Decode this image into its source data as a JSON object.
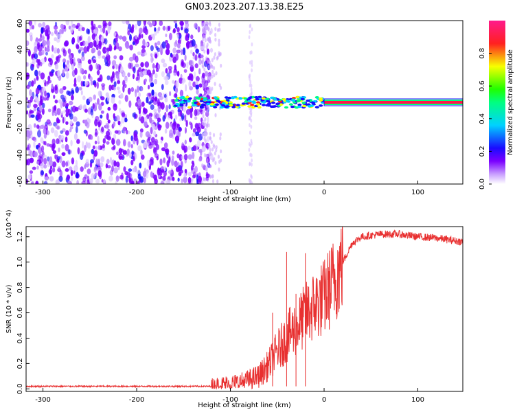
{
  "title": "GN03.2023.207.13.38.E25",
  "chart_data": [
    {
      "type": "heatmap",
      "title": "",
      "xlabel": "Height of straight line (km)",
      "ylabel": "Frequency (Hz)",
      "xlim": [
        -318,
        148
      ],
      "ylim": [
        -62,
        62
      ],
      "xticks": [
        -300,
        -200,
        -100,
        0,
        100
      ],
      "yticks": [
        60,
        40,
        20,
        0,
        -20,
        -40,
        -60
      ],
      "colorbar": {
        "label": "Normalized spectral amplitude",
        "range": [
          0.0,
          1.0
        ],
        "ticks": [
          0.0,
          0.2,
          0.4,
          0.6,
          0.8
        ],
        "colors": [
          "#e8d8f8",
          "#7b00ff",
          "#1a0bff",
          "#00d2ff",
          "#00ff40",
          "#f8ff00",
          "#ff2020",
          "#ff1a8c"
        ]
      },
      "regions": [
        {
          "x": [
            -318,
            -130
          ],
          "freq": [
            -62,
            62
          ],
          "amplitude": 0.25,
          "description": "broadband noise"
        },
        {
          "x": [
            -130,
            -110
          ],
          "freq": [
            -62,
            62
          ],
          "amplitude": 0.12
        },
        {
          "x": [
            -160,
            0
          ],
          "freq": [
            -5,
            6
          ],
          "amplitude": 0.6
        },
        {
          "x": [
            0,
            148
          ],
          "freq": [
            -1,
            1
          ],
          "amplitude": 0.95
        }
      ],
      "trace_center_hz": 0
    },
    {
      "type": "line",
      "title": "",
      "xlabel": "Height of straight line (km)",
      "ylabel": "SNR (10 * v/v)",
      "y_multiplier": "(x10^4)",
      "xlim": [
        -318,
        148
      ],
      "ylim": [
        -0.02,
        1.28
      ],
      "xticks": [
        -300,
        -200,
        -100,
        0,
        100
      ],
      "yticks": [
        0.0,
        0.2,
        0.4,
        0.6,
        0.8,
        1.0,
        1.2
      ],
      "color": "#e83030",
      "series": [
        {
          "x": [
            -318,
            -250,
            -200,
            -150,
            -120,
            -110,
            -100,
            -90,
            -80,
            -70,
            -60,
            -50,
            -40,
            -35,
            -30,
            -20,
            -10,
            0,
            10,
            20,
            30,
            40,
            60,
            80,
            100,
            120,
            148
          ],
          "y": [
            0.02,
            0.02,
            0.02,
            0.02,
            0.02,
            0.03,
            0.04,
            0.05,
            0.07,
            0.1,
            0.18,
            0.3,
            0.4,
            0.45,
            0.48,
            0.58,
            0.66,
            0.72,
            0.85,
            1.0,
            1.15,
            1.2,
            1.22,
            1.22,
            1.2,
            1.19,
            1.16
          ]
        }
      ],
      "spikes": [
        {
          "x": -40,
          "y": 1.08
        },
        {
          "x": -20,
          "y": 1.07
        },
        {
          "x": -55,
          "y": 0.6
        },
        {
          "x": -30,
          "y": 0.75
        }
      ]
    }
  ]
}
